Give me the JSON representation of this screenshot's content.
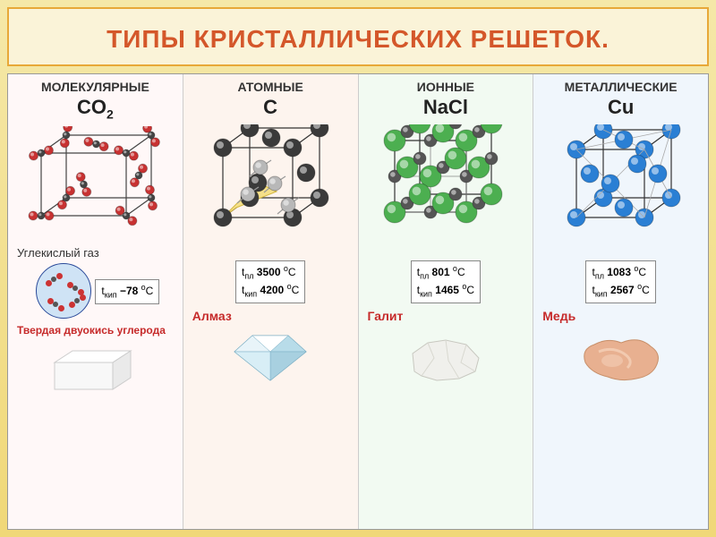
{
  "title": "ТИПЫ КРИСТАЛЛИЧЕСКИХ РЕШЕТОК.",
  "columns": [
    {
      "header": "МОЛЕКУЛЯРНЫЕ",
      "formula_html": "CO₂",
      "background": "#fff8f8",
      "lattice": {
        "type": "molecular",
        "edge_color": "#444444",
        "atom1_color": "#c83232",
        "atom2_color": "#444444",
        "atom_r": 8
      },
      "gas_label": "Углекислый газ",
      "temps": [
        {
          "label": "t",
          "sub": "кип",
          "value": "−78",
          "unit": "°C"
        }
      ],
      "mineral": "Твердая двуокись углерода",
      "mineral_color": "#c62a2a",
      "sample_type": "cube"
    },
    {
      "header": "АТОМНЫЕ",
      "formula_html": "C",
      "background": "#fdf4ee",
      "lattice": {
        "type": "diamond",
        "edge_color": "#333333",
        "atom1_color": "#3a3a3a",
        "atom2_color": "#b8b8b8",
        "tetra_fill": "#f5e08a",
        "atom_r": 10
      },
      "temps": [
        {
          "label": "t",
          "sub": "пл",
          "value": "3500",
          "unit": "°C"
        },
        {
          "label": "t",
          "sub": "кип",
          "value": "4200",
          "unit": "°C"
        }
      ],
      "mineral": "Алмаз",
      "sample_type": "diamond"
    },
    {
      "header": "ИОННЫЕ",
      "formula_html": "NaCl",
      "background": "#f2faf2",
      "lattice": {
        "type": "ionic",
        "edge_color": "#333333",
        "atom1_color": "#4caf50",
        "atom2_color": "#555555",
        "atom_r_big": 12,
        "atom_r_small": 7
      },
      "temps": [
        {
          "label": "t",
          "sub": "пл",
          "value": "801",
          "unit": "°C"
        },
        {
          "label": "t",
          "sub": "кип",
          "value": "1465",
          "unit": "°C"
        }
      ],
      "mineral": "Галит",
      "sample_type": "halite"
    },
    {
      "header": "МЕТАЛЛИЧЕСКИЕ",
      "formula_html": "Cu",
      "background": "#f0f6fc",
      "lattice": {
        "type": "fcc",
        "edge_color": "#333333",
        "atom_color": "#2a7fd4",
        "atom_r": 10
      },
      "temps": [
        {
          "label": "t",
          "sub": "пл",
          "value": "1083",
          "unit": "°C"
        },
        {
          "label": "t",
          "sub": "кип",
          "value": "2567",
          "unit": "°C"
        }
      ],
      "mineral": "Медь",
      "sample_type": "copper"
    }
  ],
  "title_style": {
    "color": "#d4572a",
    "fontsize": 28
  }
}
